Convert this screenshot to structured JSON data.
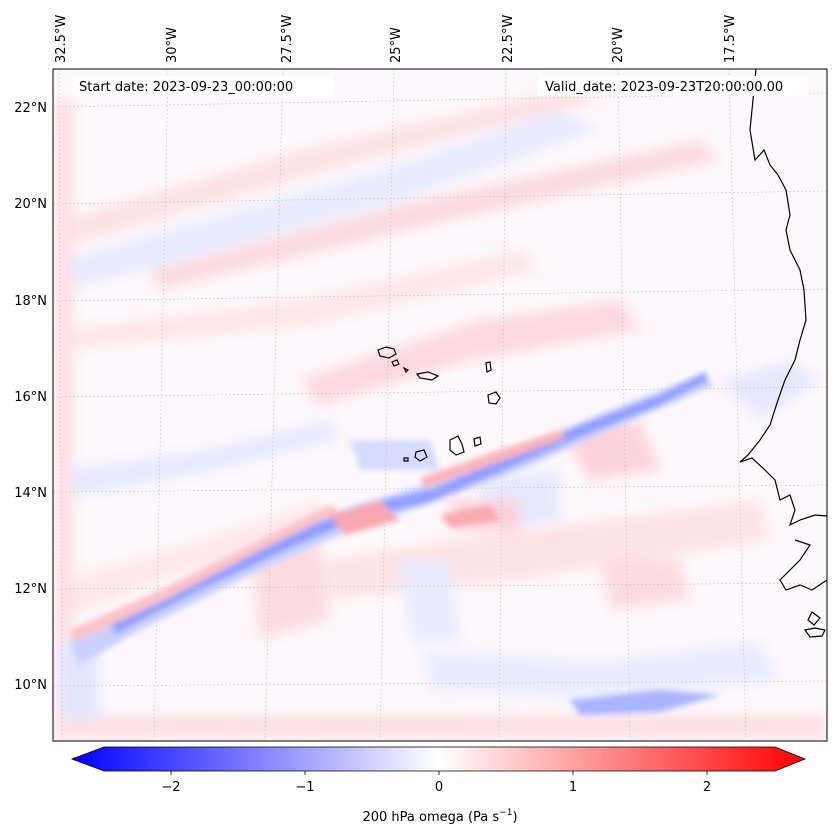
{
  "map": {
    "start_date_label": "Start date: 2023-09-23_00:00:00",
    "valid_date_label": "Valid_date: 2023-09-23T20:00:00.00",
    "lon_labels": [
      "32.5°W",
      "30°W",
      "27.5°W",
      "25°W",
      "22.5°W",
      "20°W",
      "17.5°W"
    ],
    "lat_labels": [
      "22°N",
      "20°N",
      "18°N",
      "16°N",
      "14°N",
      "12°N",
      "10°N"
    ],
    "colors": {
      "negative": "#0000ff",
      "neutral": "#ffffff",
      "positive": "#ff0000",
      "coastline": "#000000",
      "gridlines": "#b0b0b0"
    }
  },
  "colorbar": {
    "label": "200 hPa omega (Pa s",
    "label_superscript": "−1",
    "label_suffix": ")",
    "ticks": [
      "−2",
      "−1",
      "0",
      "1",
      "2"
    ],
    "range": [
      -2.7,
      2.7
    ]
  }
}
